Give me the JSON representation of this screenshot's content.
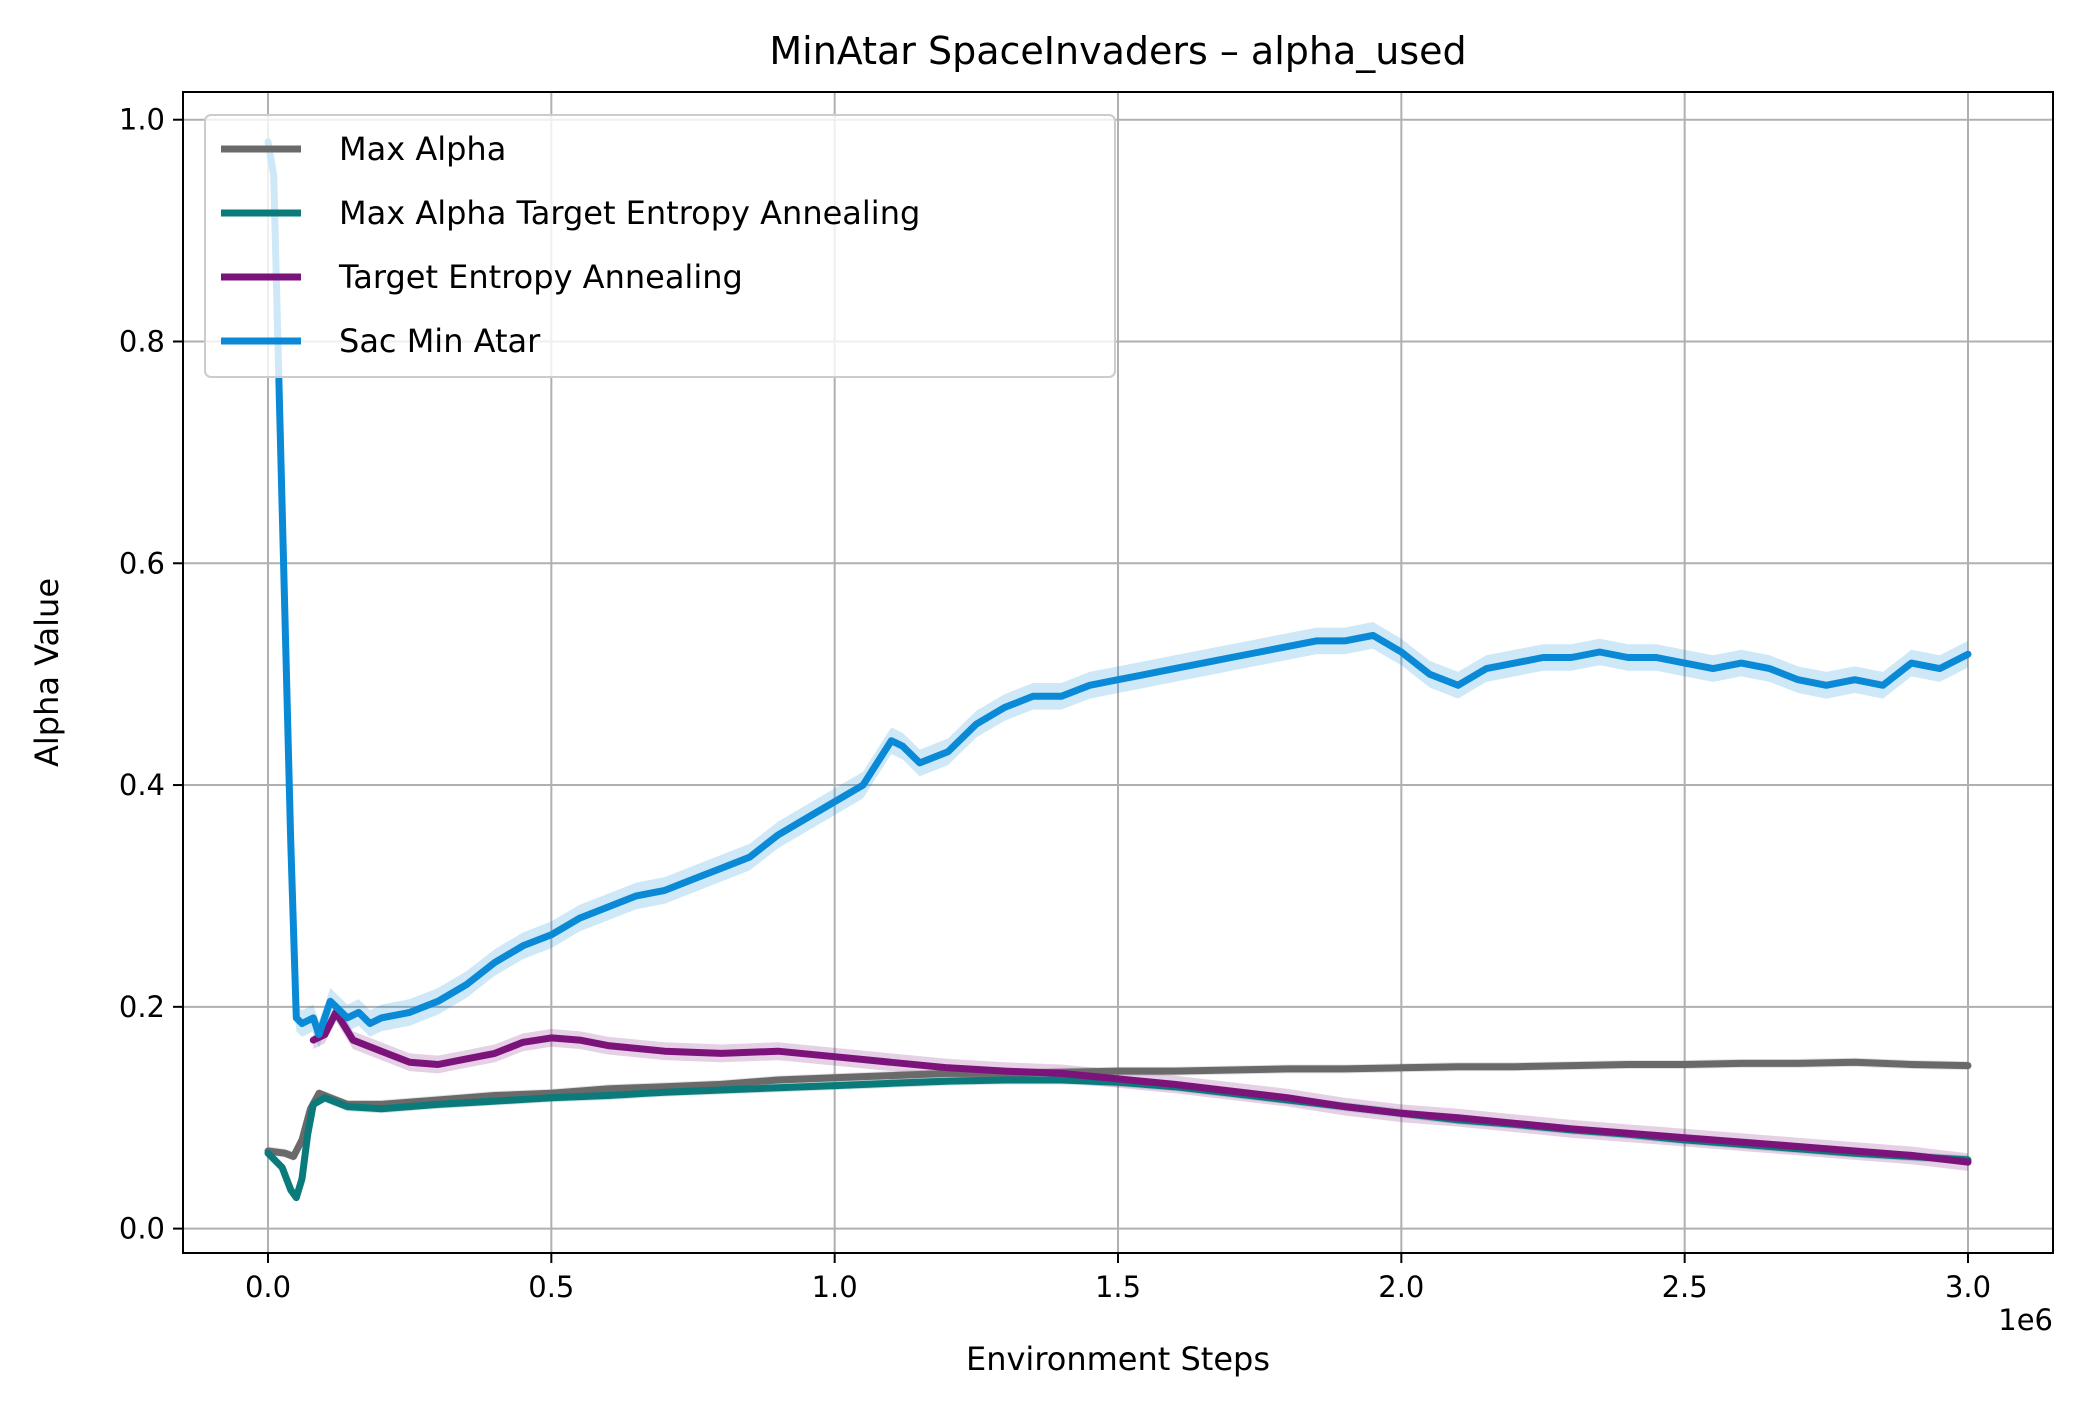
{
  "chart_data": {
    "type": "line",
    "title": "MinAtar SpaceInvaders – alpha_used",
    "xlabel": "Environment Steps",
    "ylabel": "Alpha Value",
    "x_offset_label": "1e6",
    "xlim": [
      -0.15,
      3.15
    ],
    "ylim": [
      -0.022,
      1.025
    ],
    "x_ticks": [
      0.0,
      0.5,
      1.0,
      1.5,
      2.0,
      2.5,
      3.0
    ],
    "x_tick_labels": [
      "0.0",
      "0.5",
      "1.0",
      "1.5",
      "2.0",
      "2.5",
      "3.0"
    ],
    "y_ticks": [
      0.0,
      0.2,
      0.4,
      0.6,
      0.8,
      1.0
    ],
    "y_tick_labels": [
      "0.0",
      "0.2",
      "0.4",
      "0.6",
      "0.8",
      "1.0"
    ],
    "grid": true,
    "legend_position": "upper-left",
    "series": [
      {
        "name": "Max Alpha",
        "color": "#6a6a6a",
        "band_width": 0.004,
        "x": [
          0.0,
          0.03,
          0.045,
          0.06,
          0.075,
          0.09,
          0.11,
          0.14,
          0.2,
          0.3,
          0.4,
          0.5,
          0.6,
          0.7,
          0.8,
          0.9,
          1.0,
          1.1,
          1.2,
          1.3,
          1.4,
          1.5,
          1.6,
          1.7,
          1.8,
          1.9,
          2.0,
          2.1,
          2.2,
          2.3,
          2.4,
          2.5,
          2.6,
          2.7,
          2.8,
          2.9,
          3.0
        ],
        "y": [
          0.07,
          0.068,
          0.065,
          0.08,
          0.108,
          0.122,
          0.118,
          0.112,
          0.112,
          0.116,
          0.12,
          0.122,
          0.126,
          0.128,
          0.13,
          0.134,
          0.136,
          0.138,
          0.14,
          0.14,
          0.141,
          0.142,
          0.142,
          0.143,
          0.144,
          0.144,
          0.145,
          0.146,
          0.146,
          0.147,
          0.148,
          0.148,
          0.149,
          0.149,
          0.15,
          0.148,
          0.147
        ]
      },
      {
        "name": "Max Alpha Target Entropy Annealing",
        "color": "#0a7a7a",
        "band_width": 0.004,
        "x": [
          0.0,
          0.025,
          0.04,
          0.05,
          0.06,
          0.07,
          0.08,
          0.1,
          0.14,
          0.2,
          0.3,
          0.4,
          0.5,
          0.6,
          0.7,
          0.8,
          0.9,
          1.0,
          1.1,
          1.2,
          1.3,
          1.4,
          1.5,
          1.6,
          1.7,
          1.8,
          1.9,
          2.0,
          2.1,
          2.2,
          2.3,
          2.4,
          2.5,
          2.6,
          2.7,
          2.8,
          2.9,
          3.0
        ],
        "y": [
          0.068,
          0.055,
          0.035,
          0.028,
          0.045,
          0.085,
          0.112,
          0.118,
          0.11,
          0.108,
          0.112,
          0.115,
          0.118,
          0.12,
          0.123,
          0.125,
          0.127,
          0.129,
          0.131,
          0.133,
          0.134,
          0.134,
          0.132,
          0.128,
          0.122,
          0.116,
          0.11,
          0.104,
          0.098,
          0.094,
          0.089,
          0.085,
          0.08,
          0.076,
          0.072,
          0.068,
          0.065,
          0.062
        ]
      },
      {
        "name": "Target Entropy Annealing",
        "color": "#7b137b",
        "band_width": 0.008,
        "x": [
          0.08,
          0.1,
          0.12,
          0.15,
          0.2,
          0.25,
          0.3,
          0.35,
          0.4,
          0.45,
          0.5,
          0.55,
          0.6,
          0.7,
          0.8,
          0.9,
          1.0,
          1.1,
          1.2,
          1.3,
          1.4,
          1.5,
          1.6,
          1.7,
          1.8,
          1.9,
          2.0,
          2.1,
          2.2,
          2.3,
          2.4,
          2.5,
          2.6,
          2.7,
          2.8,
          2.9,
          3.0
        ],
        "y": [
          0.17,
          0.175,
          0.195,
          0.17,
          0.16,
          0.15,
          0.148,
          0.153,
          0.158,
          0.168,
          0.172,
          0.17,
          0.165,
          0.16,
          0.158,
          0.16,
          0.155,
          0.15,
          0.145,
          0.142,
          0.14,
          0.135,
          0.13,
          0.124,
          0.118,
          0.11,
          0.104,
          0.1,
          0.095,
          0.09,
          0.086,
          0.082,
          0.078,
          0.074,
          0.07,
          0.066,
          0.06
        ]
      },
      {
        "name": "Sac Min Atar",
        "color": "#0a8ad6",
        "band_width": 0.012,
        "x": [
          0.0,
          0.01,
          0.02,
          0.04,
          0.05,
          0.06,
          0.08,
          0.09,
          0.1,
          0.11,
          0.12,
          0.14,
          0.16,
          0.18,
          0.2,
          0.25,
          0.3,
          0.35,
          0.4,
          0.45,
          0.5,
          0.55,
          0.6,
          0.65,
          0.7,
          0.75,
          0.8,
          0.85,
          0.9,
          0.95,
          1.0,
          1.05,
          1.1,
          1.12,
          1.15,
          1.2,
          1.25,
          1.3,
          1.35,
          1.4,
          1.45,
          1.5,
          1.55,
          1.6,
          1.65,
          1.7,
          1.75,
          1.8,
          1.85,
          1.9,
          1.95,
          2.0,
          2.05,
          2.1,
          2.15,
          2.2,
          2.25,
          2.3,
          2.35,
          2.4,
          2.45,
          2.5,
          2.55,
          2.6,
          2.65,
          2.7,
          2.75,
          2.8,
          2.85,
          2.9,
          2.95,
          3.0
        ],
        "y": [
          0.98,
          0.95,
          0.75,
          0.35,
          0.19,
          0.185,
          0.19,
          0.175,
          0.19,
          0.205,
          0.2,
          0.19,
          0.195,
          0.185,
          0.19,
          0.195,
          0.205,
          0.22,
          0.24,
          0.255,
          0.265,
          0.28,
          0.29,
          0.3,
          0.305,
          0.315,
          0.325,
          0.335,
          0.355,
          0.37,
          0.385,
          0.4,
          0.44,
          0.435,
          0.42,
          0.43,
          0.455,
          0.47,
          0.48,
          0.48,
          0.49,
          0.495,
          0.5,
          0.505,
          0.51,
          0.515,
          0.52,
          0.525,
          0.53,
          0.53,
          0.535,
          0.52,
          0.5,
          0.49,
          0.505,
          0.51,
          0.515,
          0.515,
          0.52,
          0.515,
          0.515,
          0.51,
          0.505,
          0.51,
          0.505,
          0.495,
          0.49,
          0.495,
          0.49,
          0.51,
          0.505,
          0.518
        ]
      }
    ]
  }
}
